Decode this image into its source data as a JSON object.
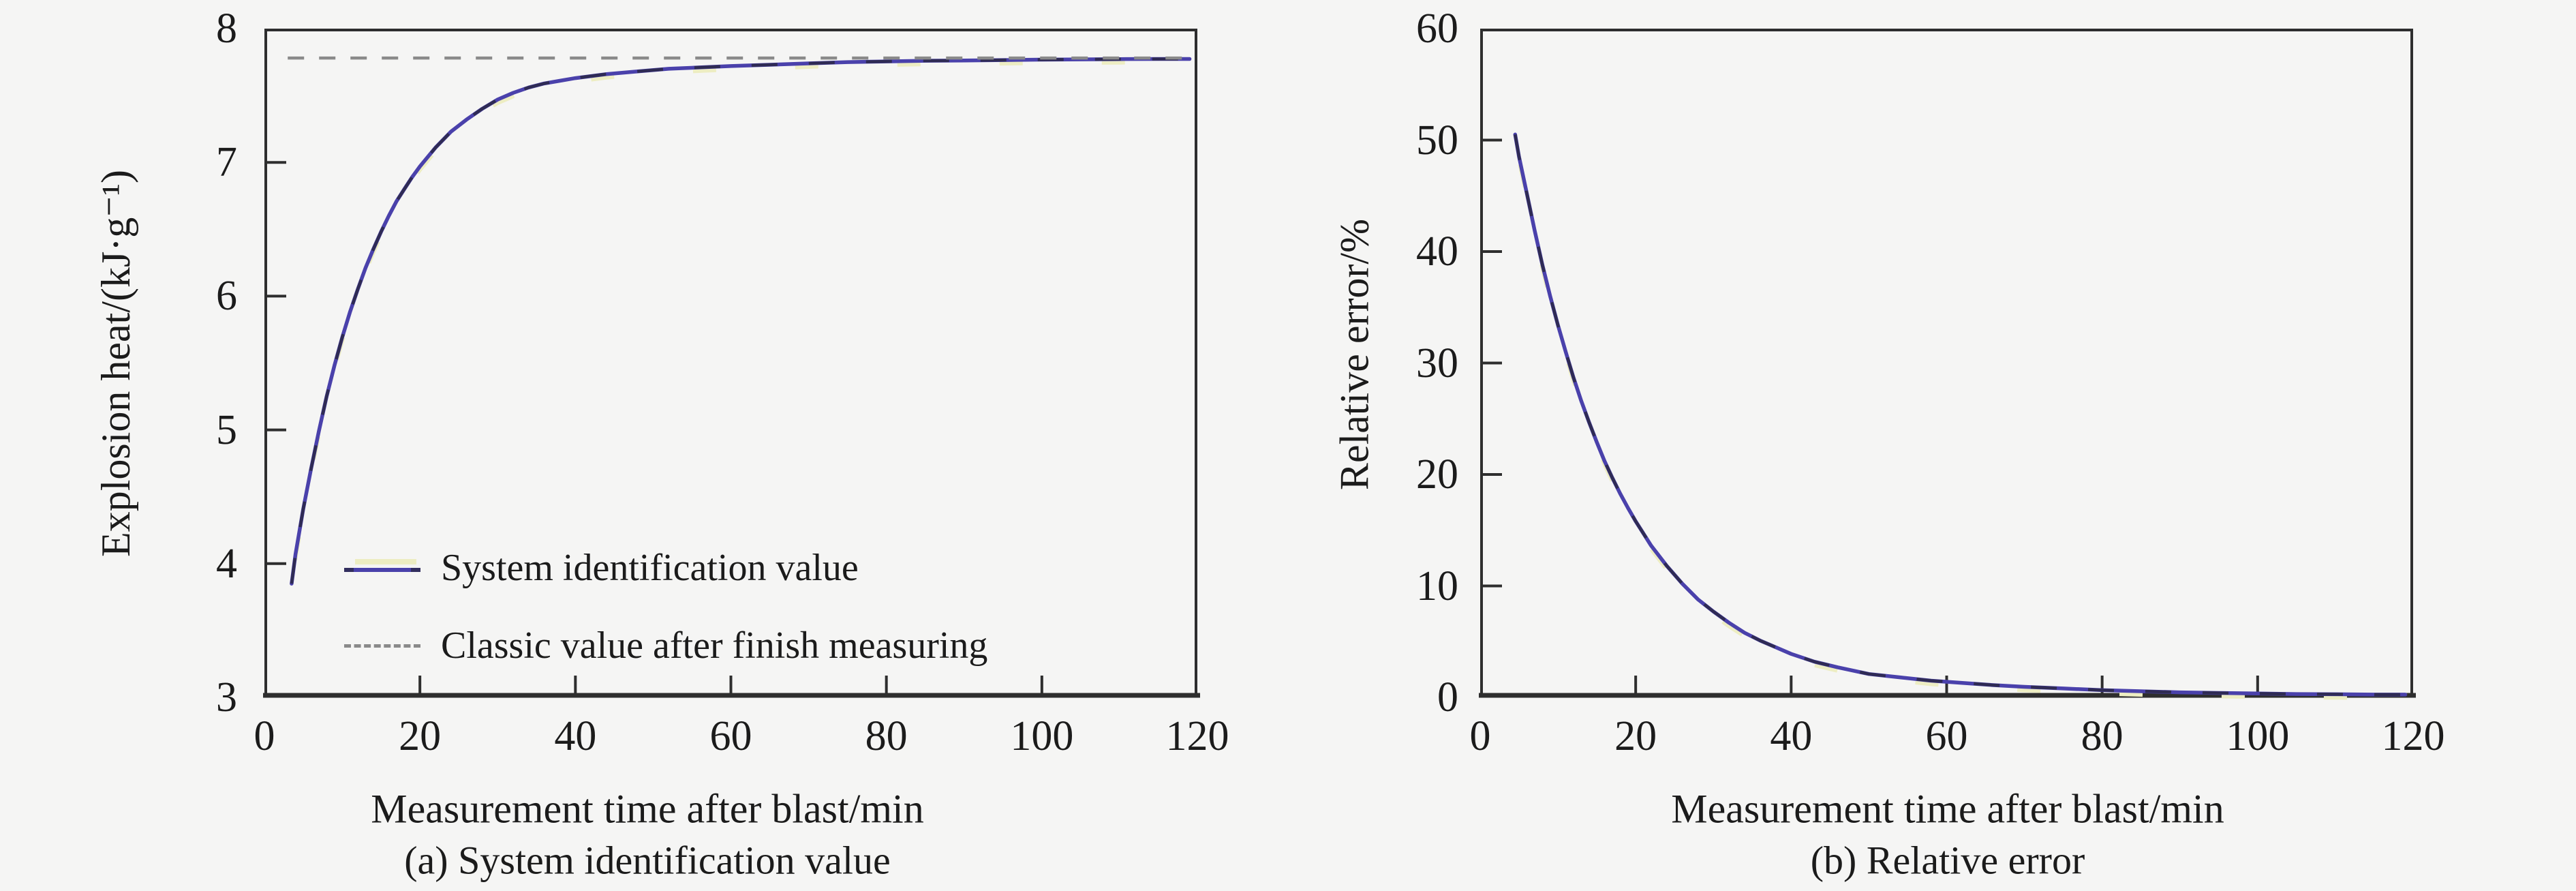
{
  "figure": {
    "background": "#f5f5f4",
    "text_color": "#1b1b1b",
    "axis_color": "#2e2e2e",
    "curve_color": "#4a41ab",
    "curve_dash_overlay_color": "#1f1f1f",
    "curve_highlight_color": "#ededc2",
    "classic_line_color": "#8a8a8a"
  },
  "chart_data": [
    {
      "type": "line",
      "title": "(a) System identification value",
      "xlabel": "Measurement time after blast/min",
      "ylabel": "Explosion heat/(kJ·g⁻¹)",
      "xlim": [
        0,
        120
      ],
      "ylim": [
        3,
        8
      ],
      "xticks": [
        0,
        20,
        40,
        60,
        80,
        100,
        120
      ],
      "yticks": [
        3,
        4,
        5,
        6,
        7,
        8
      ],
      "grid": false,
      "legend_position": "inside lower-left",
      "series": [
        {
          "name": "System identification value",
          "style": "solid-blue",
          "points": [
            [
              3.5,
              3.85
            ],
            [
              4,
              4.07
            ],
            [
              5,
              4.41
            ],
            [
              6,
              4.71
            ],
            [
              7,
              4.99
            ],
            [
              8,
              5.25
            ],
            [
              9,
              5.48
            ],
            [
              10,
              5.69
            ],
            [
              11,
              5.88
            ],
            [
              12,
              6.05
            ],
            [
              13,
              6.21
            ],
            [
              14,
              6.35
            ],
            [
              15,
              6.48
            ],
            [
              16,
              6.6
            ],
            [
              17,
              6.71
            ],
            [
              18,
              6.8
            ],
            [
              19,
              6.89
            ],
            [
              20,
              6.97
            ],
            [
              22,
              7.11
            ],
            [
              24,
              7.23
            ],
            [
              26,
              7.32
            ],
            [
              28,
              7.4
            ],
            [
              30,
              7.47
            ],
            [
              32,
              7.52
            ],
            [
              34,
              7.56
            ],
            [
              36,
              7.59
            ],
            [
              38,
              7.61
            ],
            [
              40,
              7.63
            ],
            [
              44,
              7.66
            ],
            [
              48,
              7.68
            ],
            [
              52,
              7.7
            ],
            [
              56,
              7.71
            ],
            [
              60,
              7.72
            ],
            [
              65,
              7.73
            ],
            [
              70,
              7.74
            ],
            [
              75,
              7.75
            ],
            [
              80,
              7.755
            ],
            [
              85,
              7.76
            ],
            [
              90,
              7.762
            ],
            [
              95,
              7.765
            ],
            [
              100,
              7.768
            ],
            [
              105,
              7.77
            ],
            [
              110,
              7.772
            ],
            [
              115,
              7.773
            ],
            [
              119,
              7.773
            ]
          ]
        },
        {
          "name": "Classic value after finish measuring",
          "style": "dashed-gray",
          "reference_value": 7.78
        }
      ]
    },
    {
      "type": "line",
      "title": "(b) Relative error",
      "xlabel": "Measurement time after blast/min",
      "ylabel": "Relative error/%",
      "xlim": [
        0,
        120
      ],
      "ylim": [
        0,
        60
      ],
      "xticks": [
        0,
        20,
        40,
        60,
        80,
        100,
        120
      ],
      "yticks": [
        0,
        10,
        20,
        30,
        40,
        50,
        60
      ],
      "grid": false,
      "series": [
        {
          "name": "Relative error",
          "style": "solid-blue",
          "points": [
            [
              4.5,
              50.5
            ],
            [
              5,
              48.5
            ],
            [
              6,
              45.2
            ],
            [
              7,
              41.9
            ],
            [
              8,
              38.8
            ],
            [
              9,
              36.0
            ],
            [
              10,
              33.4
            ],
            [
              11,
              31.0
            ],
            [
              12,
              28.7
            ],
            [
              13,
              26.6
            ],
            [
              14,
              24.7
            ],
            [
              15,
              22.9
            ],
            [
              16,
              21.2
            ],
            [
              17,
              19.7
            ],
            [
              18,
              18.3
            ],
            [
              19,
              17.0
            ],
            [
              20,
              15.8
            ],
            [
              22,
              13.6
            ],
            [
              24,
              11.8
            ],
            [
              26,
              10.2
            ],
            [
              28,
              8.8
            ],
            [
              30,
              7.7
            ],
            [
              32,
              6.7
            ],
            [
              34,
              5.8
            ],
            [
              36,
              5.1
            ],
            [
              38,
              4.5
            ],
            [
              40,
              3.9
            ],
            [
              43,
              3.2
            ],
            [
              46,
              2.7
            ],
            [
              50,
              2.1
            ],
            [
              54,
              1.8
            ],
            [
              58,
              1.5
            ],
            [
              62,
              1.3
            ],
            [
              66,
              1.1
            ],
            [
              70,
              0.95
            ],
            [
              75,
              0.8
            ],
            [
              80,
              0.65
            ],
            [
              85,
              0.55
            ],
            [
              90,
              0.45
            ],
            [
              95,
              0.4
            ],
            [
              100,
              0.35
            ],
            [
              105,
              0.3
            ],
            [
              110,
              0.28
            ],
            [
              115,
              0.25
            ],
            [
              119,
              0.25
            ]
          ]
        }
      ]
    }
  ]
}
